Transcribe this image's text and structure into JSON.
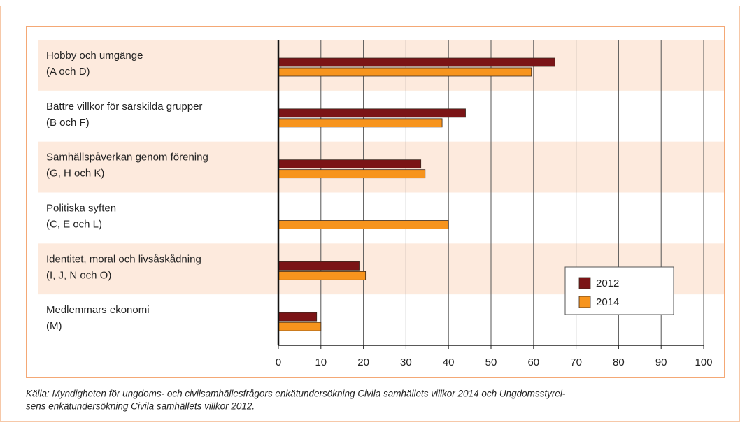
{
  "chart_data": {
    "type": "hbar",
    "categories": [
      [
        "Hobby och umgänge",
        "(A och D)"
      ],
      [
        "Bättre villkor för särskilda grupper",
        "(B och F)"
      ],
      [
        "Samhällspåverkan genom förening",
        "(G, H och K)"
      ],
      [
        "Politiska syften",
        "(C, E och L)"
      ],
      [
        "Identitet, moral och livsåskådning",
        "(I, J, N och O)"
      ],
      [
        "Medlemmars ekonomi",
        "(M)"
      ]
    ],
    "series": [
      {
        "name": "2012",
        "color": "#7b1416",
        "values": [
          65,
          44,
          33.5,
          null,
          19,
          9
        ]
      },
      {
        "name": "2014",
        "color": "#f7941d",
        "values": [
          59.5,
          38.5,
          34.5,
          40,
          20.5,
          10
        ]
      }
    ],
    "xlim": [
      0,
      100
    ],
    "xticks": [
      0,
      10,
      20,
      30,
      40,
      50,
      60,
      70,
      80,
      90,
      100
    ],
    "grid": true,
    "legend": "lower right",
    "source": [
      "Källa: Myndigheten för ungdoms- och civilsamhällesfrågors enkätundersökning Civila samhällets villkor 2014 och Ungdomsstyrel-",
      "sens enkätundersökning Civila samhällets villkor 2012."
    ]
  }
}
